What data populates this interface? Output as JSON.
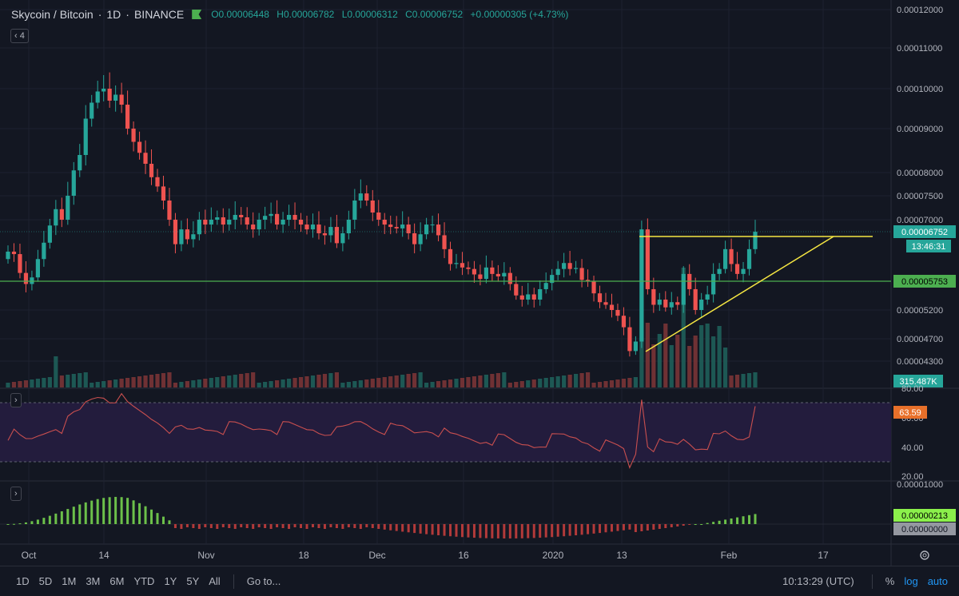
{
  "legend": {
    "symbol": "Skycoin / Bitcoin",
    "interval": "1D",
    "exchange": "BINANCE",
    "open": "O0.00006448",
    "high": "H0.00006782",
    "low": "L0.00006312",
    "close": "C0.00006752",
    "change": "+0.00000305 (+4.73%)"
  },
  "indicator_count": "4",
  "price_axis": {
    "ticks": [
      "0.00012000",
      "0.00011000",
      "0.00010000",
      "0.00009000",
      "0.00008000",
      "0.00007500",
      "0.00007000",
      "0.00005200",
      "0.00004700",
      "0.00004300"
    ],
    "last_price": "0.00006752",
    "countdown": "13:46:31",
    "hline_price": "0.00005753",
    "volume": "315.487K"
  },
  "rsi_axis": {
    "ticks": [
      "80.00",
      "60.00",
      "40.00",
      "20.00"
    ],
    "value": "63.59"
  },
  "macd_axis": {
    "ticks": [
      "0.00001000"
    ],
    "value": "0.00000213",
    "zero": "0.00000000"
  },
  "time_axis": {
    "labels": [
      "Oct",
      "14",
      "Nov",
      "18",
      "Dec",
      "16",
      "2020",
      "13",
      "Feb",
      "17"
    ]
  },
  "bottom_bar": {
    "ranges": [
      "1D",
      "5D",
      "1M",
      "3M",
      "6M",
      "YTD",
      "1Y",
      "5Y",
      "All"
    ],
    "goto": "Go to...",
    "clock": "10:13:29 (UTC)",
    "percent": "%",
    "log": "log",
    "auto": "auto"
  },
  "colors": {
    "up": "#26a69a",
    "down": "#ef5350",
    "hline": "#4caf50",
    "trend": "#f5e642",
    "rsi_band": "#2a1f4a",
    "rsi_line": "#c94f4f"
  },
  "chart_data": {
    "type": "candlestick",
    "close": [
      6.35e-05,
      6.3e-05,
      5.92e-05,
      5.7e-05,
      5.83e-05,
      6.2e-05,
      6.53e-05,
      6.88e-05,
      7.22e-05,
      7e-05,
      7.5e-05,
      8.05e-05,
      8.4e-05,
      9.25e-05,
      9.65e-05,
      9.93e-05,
      0.0001,
      9.7e-05,
      9.85e-05,
      9.6e-05,
      9e-05,
      8.7e-05,
      8.45e-05,
      8.2e-05,
      7.9e-05,
      7.7e-05,
      7.4e-05,
      7e-05,
      6.5e-05,
      6.8e-05,
      6.6e-05,
      6.7e-05,
      7e-05,
      6.9e-05,
      7e-05,
      7.05e-05,
      6.9e-05,
      7e-05,
      7.1e-05,
      7.05e-05,
      6.9e-05,
      6.8e-05,
      7e-05,
      7.08e-05,
      7.12e-05,
      6.9e-05,
      7e-05,
      7.1e-05,
      7e-05,
      6.9e-05,
      6.8e-05,
      6.9e-05,
      6.72e-05,
      6.68e-05,
      6.85e-05,
      6.52e-05,
      6.72e-05,
      7e-05,
      7.4e-05,
      7.55e-05,
      7.4e-05,
      7.15e-05,
      7e-05,
      6.9e-05,
      6.85e-05,
      6.82e-05,
      6.9e-05,
      6.72e-05,
      6.5e-05,
      6.7e-05,
      6.9e-05,
      6.9e-05,
      6.68e-05,
      6.4e-05,
      6.1e-05,
      6.12e-05,
      6.03e-05,
      6e-05,
      5.89e-05,
      5.8e-05,
      6.03e-05,
      5.9e-05,
      5.85e-05,
      5.92e-05,
      5.7e-05,
      5.48e-05,
      5.4e-05,
      5.5e-05,
      5.4e-05,
      5.6e-05,
      5.72e-05,
      5.88e-05,
      6e-05,
      6.12e-05,
      6e-05,
      6.02e-05,
      5.78e-05,
      5.75e-05,
      5.52e-05,
      5.35e-05,
      5.3e-05,
      5.2e-05,
      5.1e-05,
      4.9e-05,
      4.48e-05,
      4.65e-05,
      6.8e-05,
      5.6e-05,
      5.3e-05,
      5.4e-05,
      5.25e-05,
      5.35e-05,
      5.3e-05,
      5.9e-05,
      5.6e-05,
      5.2e-05,
      5.4e-05,
      5.5e-05,
      5.9e-05,
      6e-05,
      6.4e-05,
      6.1e-05,
      5.9e-05,
      6e-05,
      6.4e-05,
      6.75e-05
    ]
  }
}
